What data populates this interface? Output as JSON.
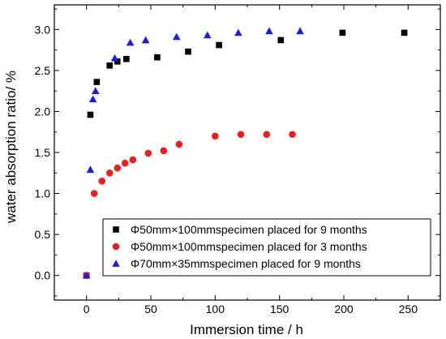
{
  "chart_data": {
    "type": "scatter",
    "title": "",
    "xlabel": "Immersion time / h",
    "ylabel": "water absorption ratio/ %",
    "xlim": [
      -25,
      275
    ],
    "ylim": [
      -0.3,
      3.3
    ],
    "xticks": [
      0,
      50,
      100,
      150,
      200,
      250
    ],
    "yticks": [
      0.0,
      0.5,
      1.0,
      1.5,
      2.0,
      2.5,
      3.0
    ],
    "ytick_labels": [
      "0.0",
      "0.5",
      "1.0",
      "1.5",
      "2.0",
      "2.5",
      "3.0"
    ],
    "grid": false,
    "legend_position": "bottom-right",
    "series": [
      {
        "name": "Φ50mm×100mmspecimen  placed for 9 months",
        "marker": "square",
        "color": "#000000",
        "points": [
          [
            0,
            0.0
          ],
          [
            3,
            1.96
          ],
          [
            8,
            2.36
          ],
          [
            18,
            2.56
          ],
          [
            24,
            2.61
          ],
          [
            31,
            2.64
          ],
          [
            55,
            2.66
          ],
          [
            79,
            2.73
          ],
          [
            103,
            2.81
          ],
          [
            151,
            2.87
          ],
          [
            199,
            2.96
          ],
          [
            247,
            2.96
          ]
        ]
      },
      {
        "name": "Φ50mm×100mmspecimen  placed for 3 months",
        "marker": "circle",
        "color": "#ee1c1c",
        "points": [
          [
            0,
            0.0
          ],
          [
            6,
            1.0
          ],
          [
            12,
            1.15
          ],
          [
            18,
            1.25
          ],
          [
            24,
            1.31
          ],
          [
            30,
            1.37
          ],
          [
            36,
            1.41
          ],
          [
            48,
            1.49
          ],
          [
            60,
            1.52
          ],
          [
            72,
            1.6
          ],
          [
            100,
            1.7
          ],
          [
            120,
            1.72
          ],
          [
            140,
            1.72
          ],
          [
            160,
            1.72
          ]
        ]
      },
      {
        "name": "Φ70mm×35mmspecimen  placed for 9 months",
        "marker": "triangle",
        "color": "#1a1aee",
        "points": [
          [
            0,
            0.0
          ],
          [
            3,
            1.29
          ],
          [
            5,
            2.15
          ],
          [
            7,
            2.25
          ],
          [
            22,
            2.65
          ],
          [
            34,
            2.84
          ],
          [
            46,
            2.87
          ],
          [
            70,
            2.91
          ],
          [
            94,
            2.93
          ],
          [
            118,
            2.96
          ],
          [
            142,
            2.98
          ],
          [
            166,
            2.98
          ]
        ]
      }
    ]
  }
}
